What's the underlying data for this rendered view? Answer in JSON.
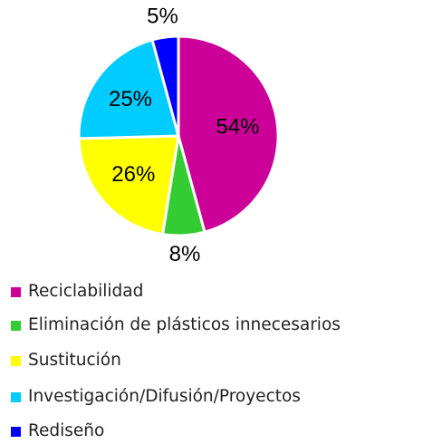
{
  "chart_data": {
    "type": "pie",
    "categories": [
      "Reciclabilidad",
      "Eliminación de plásticos innecesarios",
      "Sustitución",
      "Investigación/Difusión/Proyectos",
      "Rediseño"
    ],
    "values": [
      54,
      8,
      26,
      25,
      5
    ],
    "value_labels": [
      "54%",
      "8%",
      "26%",
      "25%",
      "5%"
    ],
    "colors": [
      "#cc0099",
      "#33cc33",
      "#ffff00",
      "#00ccff",
      "#0000ff"
    ],
    "legend": "bottom-left"
  }
}
